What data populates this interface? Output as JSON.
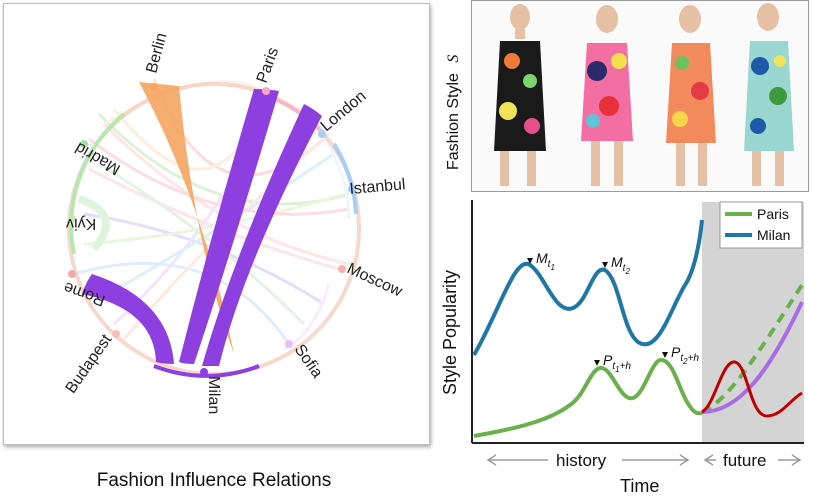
{
  "left": {
    "caption": "Fashion Influence Relations",
    "cities": [
      "Berlin",
      "Paris",
      "London",
      "Istanbul",
      "Moscow",
      "Sofia",
      "Milan",
      "Budapest",
      "Rome",
      "Kyiv",
      "Madrid"
    ]
  },
  "right": {
    "style_label": "Fashion Style",
    "style_symbol": "S",
    "y_label": "Style Popularity",
    "x_label": "Time",
    "history_label": "history",
    "future_label": "future",
    "legend": [
      {
        "name": "Paris",
        "color": "#6ab04c"
      },
      {
        "name": "Milan",
        "color": "#1f77a6"
      }
    ],
    "annotations": {
      "m1": "M",
      "m1_sub": "t",
      "m1_subsub": "1",
      "m2": "M",
      "m2_sub": "t",
      "m2_subsub": "2",
      "p1": "P",
      "p1_sub": "t",
      "p1_subsub": "1",
      "p1_suffix": "+h",
      "p2": "P",
      "p2_sub": "t",
      "p2_subsub": "2",
      "p2_suffix": "+h"
    }
  },
  "colors": {
    "purple": "#8e3fe0",
    "orange": "#f5a560",
    "milan": "#1f77a6",
    "paris": "#6ab04c",
    "future_bg": "#d4d4d4",
    "red": "#c00000",
    "lavender": "#a86de6"
  }
}
